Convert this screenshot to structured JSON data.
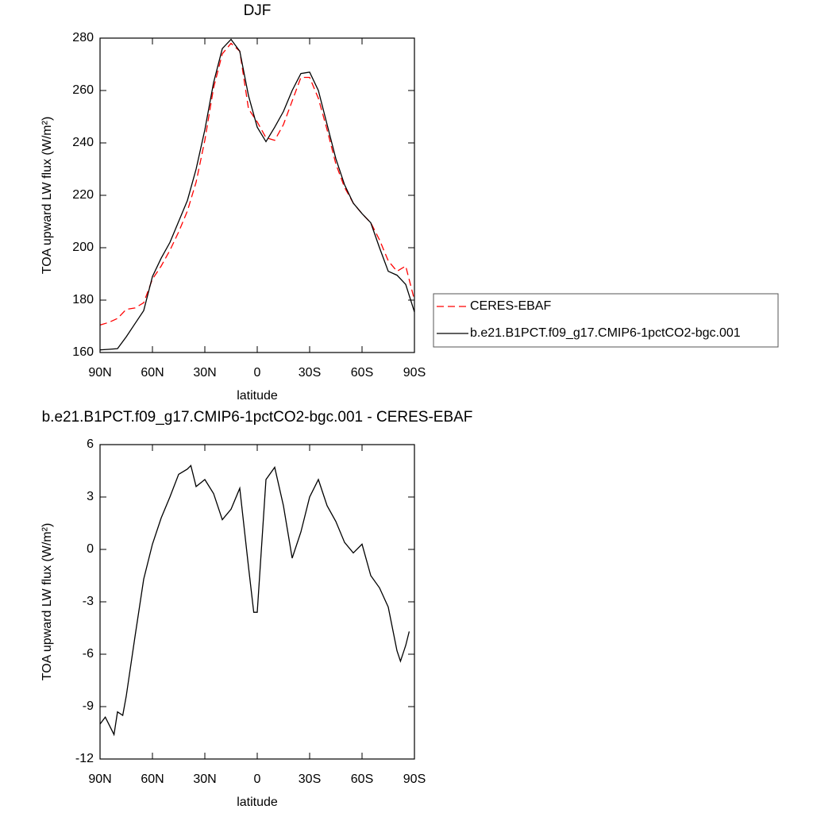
{
  "chart_data": [
    {
      "type": "line",
      "title": "DJF",
      "x_label": "latitude",
      "y_label": "TOA upward LW flux (W/m²)",
      "x": [
        90,
        85,
        80,
        75,
        70,
        65,
        60,
        55,
        50,
        45,
        40,
        35,
        30,
        25,
        20,
        15,
        10,
        5,
        0,
        -5,
        -10,
        -15,
        -20,
        -25,
        -30,
        -35,
        -40,
        -45,
        -50,
        -55,
        -60,
        -65,
        -70,
        -75,
        -80,
        -85,
        -90
      ],
      "series": [
        {
          "name": "CERES-EBAF",
          "color": "#ff0000",
          "dashed": true,
          "values": [
            170.5,
            171.5,
            173,
            176.5,
            177,
            179,
            188,
            193,
            199,
            206,
            214,
            225,
            241,
            261,
            274,
            278,
            275,
            253,
            248,
            242,
            241,
            247,
            256,
            265,
            265,
            257,
            245,
            232,
            223,
            217,
            213,
            209.5,
            203,
            195,
            191,
            193,
            180
          ]
        },
        {
          "name": "b.e21.B1PCT.f09_g17.CMIP6-1pctCO2-bgc.001",
          "color": "#000000",
          "dashed": false,
          "values": [
            161,
            161.2,
            161.5,
            166,
            171,
            176,
            189,
            196,
            202,
            210,
            218,
            230,
            245,
            263,
            276,
            279.5,
            275,
            258,
            246,
            240.5,
            246,
            252,
            260,
            266.5,
            267,
            260,
            247,
            234,
            224,
            217,
            213,
            209.5,
            200,
            191,
            189.5,
            186,
            175.5
          ]
        }
      ],
      "xlim": [
        90,
        -90
      ],
      "xticks": [
        {
          "value": 90,
          "label": "90N"
        },
        {
          "value": 60,
          "label": "60N"
        },
        {
          "value": 30,
          "label": "30N"
        },
        0,
        {
          "value": -30,
          "label": "30S"
        },
        {
          "value": -60,
          "label": "60S"
        },
        {
          "value": -90,
          "label": "90S"
        }
      ],
      "ylim": [
        160,
        280
      ],
      "yticks": [
        160,
        180,
        200,
        220,
        240,
        260,
        280
      ],
      "legend": "right"
    },
    {
      "type": "line",
      "title": "b.e21.B1PCT.f09_g17.CMIP6-1pctCO2-bgc.001 - CERES-EBAF",
      "x_label": "latitude",
      "y_label": "TOA upward LW flux (W/m²)",
      "x": [
        90,
        87,
        82,
        80,
        77,
        75,
        70,
        65,
        60,
        55,
        50,
        45,
        40,
        38,
        35,
        30,
        25,
        20,
        15,
        10,
        5,
        2,
        0,
        -5,
        -10,
        -15,
        -20,
        -25,
        -30,
        -35,
        -40,
        -45,
        -50,
        -55,
        -60,
        -65,
        -70,
        -75,
        -80,
        -82,
        -85,
        -87
      ],
      "values": [
        -10,
        -9.6,
        -10.6,
        -9.3,
        -9.5,
        -8.4,
        -5,
        -1.7,
        0.3,
        1.8,
        3,
        4.3,
        4.6,
        4.8,
        3.6,
        4,
        3.2,
        1.7,
        2.3,
        3.5,
        -1,
        -3.6,
        -3.6,
        4,
        4.7,
        2.5,
        -0.5,
        1,
        3,
        4,
        2.5,
        1.6,
        0.4,
        -0.2,
        0.3,
        -1.5,
        -2.2,
        -3.3,
        -5.8,
        -6.4,
        -5.5,
        -4.7
      ],
      "color": "#000000",
      "xlim": [
        90,
        -90
      ],
      "xticks": [
        {
          "value": 90,
          "label": "90N"
        },
        {
          "value": 60,
          "label": "60N"
        },
        {
          "value": 30,
          "label": "30N"
        },
        0,
        {
          "value": -30,
          "label": "30S"
        },
        {
          "value": -60,
          "label": "60S"
        },
        {
          "value": -90,
          "label": "90S"
        }
      ],
      "ylim": [
        -12,
        6
      ],
      "yticks": [
        -12,
        -9,
        -6,
        -3,
        0,
        3,
        6
      ]
    }
  ]
}
